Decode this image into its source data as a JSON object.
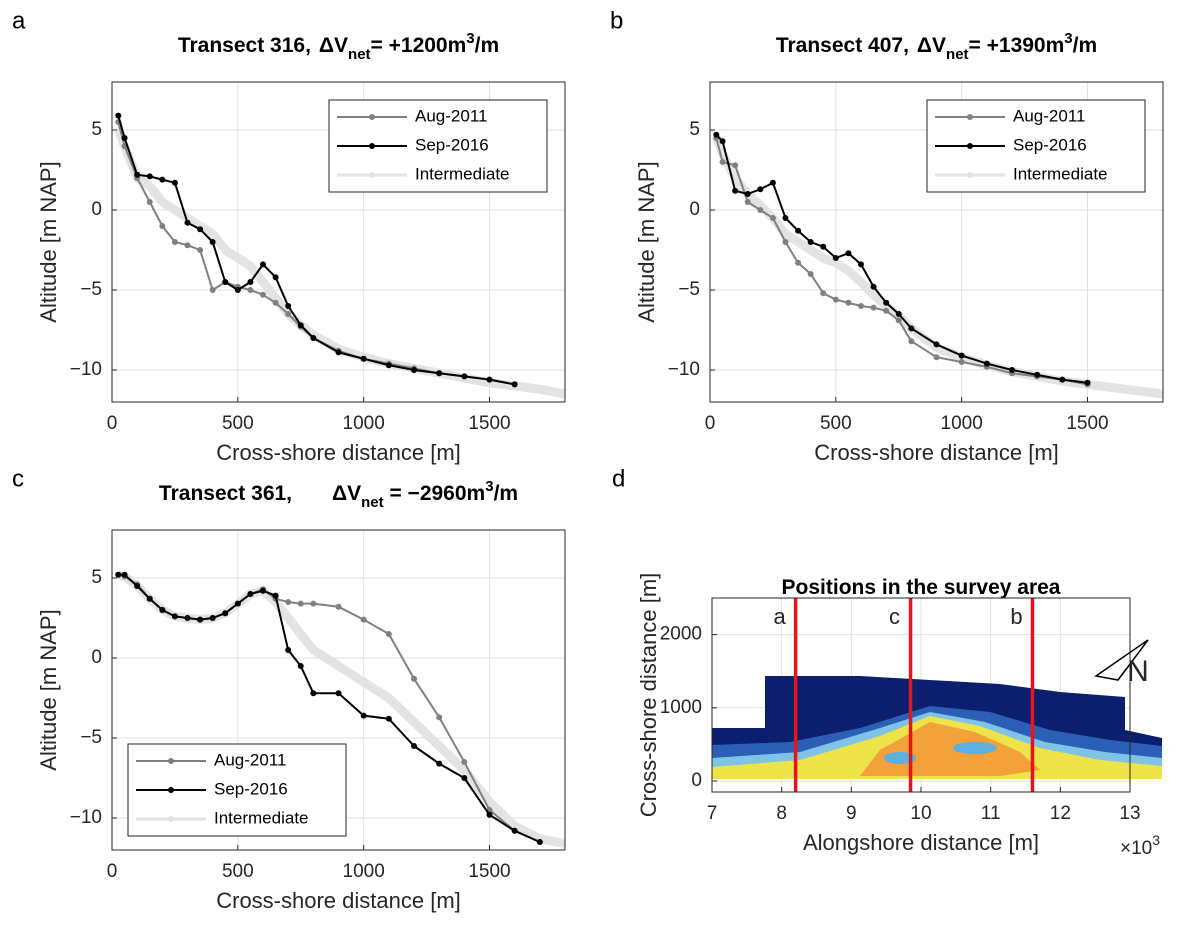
{
  "chart_data": [
    {
      "type": "line",
      "panel_label": "a",
      "title": "Transect 316,",
      "delta": {
        "symbol": "ΔV",
        "sub": "net",
        "text": "= +1200m",
        "sup": "3",
        "after": "/m"
      },
      "xlabel": "Cross-shore distance [m]",
      "ylabel": "Altitude [m NAP]",
      "xlim": [
        0,
        1800
      ],
      "ylim": [
        -12,
        8
      ],
      "xticks": [
        0,
        500,
        1000,
        1500
      ],
      "yticks": [
        {
          "value": -10,
          "label": "−10"
        },
        {
          "value": -5,
          "label": "−5"
        },
        0,
        5
      ],
      "grid": true,
      "legend": "upper right",
      "x": [
        25,
        50,
        100,
        150,
        200,
        250,
        300,
        350,
        400,
        450,
        500,
        550,
        600,
        650,
        700,
        750,
        800,
        900,
        1000,
        1100,
        1200,
        1300,
        1400,
        1500,
        1600,
        1700,
        1800
      ],
      "series": [
        {
          "name": "Intermediate",
          "color": "#e3e3e3",
          "values": [
            5,
            4,
            2,
            1.5,
            0.5,
            0,
            -0.5,
            -1,
            -1.5,
            -2.5,
            -3,
            -3.5,
            -4.5,
            -5.5,
            -6.5,
            -7.2,
            -7.8,
            -8.7,
            -9.2,
            -9.6,
            -9.9,
            -10.2,
            -10.5,
            -10.8,
            -11,
            -11.2,
            -11.5
          ]
        },
        {
          "name": "Aug-2011",
          "color": "#808080",
          "values": [
            5.5,
            4,
            2,
            0.5,
            -1,
            -2,
            -2.2,
            -2.5,
            -5,
            -4.5,
            -4.8,
            -5,
            -5.3,
            -5.8,
            -6.5,
            -7.3,
            -8,
            -8.8,
            -9.3,
            -9.6,
            -9.9,
            -10.2,
            -10.4,
            -10.6,
            -10.9,
            null,
            null
          ]
        },
        {
          "name": "Sep-2016",
          "color": "#000000",
          "values": [
            5.9,
            4.5,
            2.2,
            2.1,
            1.9,
            1.7,
            -0.8,
            -1.2,
            -2,
            -4.5,
            -5,
            -4.5,
            -3.4,
            -4.2,
            -6,
            -7.2,
            -8,
            -8.9,
            -9.3,
            -9.7,
            -10,
            -10.2,
            -10.4,
            -10.6,
            -10.9,
            null,
            null
          ]
        }
      ]
    },
    {
      "type": "line",
      "panel_label": "b",
      "title": "Transect 407,",
      "delta": {
        "symbol": "ΔV",
        "sub": "net",
        "text": "= +1390m",
        "sup": "3",
        "after": "/m"
      },
      "xlabel": "Cross-shore distance [m]",
      "ylabel": "Altitude [m NAP]",
      "xlim": [
        0,
        1800
      ],
      "ylim": [
        -12,
        8
      ],
      "xticks": [
        0,
        500,
        1000,
        1500
      ],
      "yticks": [
        {
          "value": -10,
          "label": "−10"
        },
        {
          "value": -5,
          "label": "−5"
        },
        0,
        5
      ],
      "grid": true,
      "legend": "upper right",
      "x": [
        25,
        50,
        100,
        150,
        200,
        250,
        300,
        350,
        400,
        450,
        500,
        550,
        600,
        650,
        700,
        750,
        800,
        900,
        1000,
        1100,
        1200,
        1300,
        1400,
        1500,
        1600,
        1700,
        1800
      ],
      "series": [
        {
          "name": "Intermediate",
          "color": "#e3e3e3",
          "values": [
            4.6,
            3.5,
            2,
            1,
            0.3,
            -0.5,
            -1.5,
            -2,
            -2.5,
            -3,
            -3.3,
            -3.8,
            -4.5,
            -5.3,
            -6,
            -6.6,
            -7.4,
            -8.6,
            -9.2,
            -9.7,
            -10.1,
            -10.4,
            -10.7,
            -10.9,
            -11.1,
            -11.3,
            -11.5
          ]
        },
        {
          "name": "Aug-2011",
          "color": "#808080",
          "values": [
            4.5,
            3,
            2.8,
            0.5,
            0,
            -0.5,
            -2,
            -3.3,
            -4,
            -5.2,
            -5.6,
            -5.8,
            -6,
            -6.1,
            -6.3,
            -6.9,
            -8.2,
            -9.2,
            -9.5,
            -9.8,
            -10.2,
            -10.4,
            -10.6,
            -10.9,
            null,
            null,
            null
          ]
        },
        {
          "name": "Sep-2016",
          "color": "#000000",
          "values": [
            4.7,
            4.3,
            1.2,
            1,
            1.3,
            1.7,
            -0.5,
            -1.3,
            -2,
            -2.3,
            -3,
            -2.7,
            -3.4,
            -4.8,
            -5.8,
            -6.5,
            -7.4,
            -8.4,
            -9.1,
            -9.6,
            -10,
            -10.3,
            -10.6,
            -10.8,
            null,
            null,
            null
          ]
        }
      ]
    },
    {
      "type": "line",
      "panel_label": "c",
      "title": "Transect 361,",
      "delta": {
        "symbol": "ΔV",
        "sub": "net",
        "text": " = −2960m",
        "sup": "3",
        "after": "/m"
      },
      "xlabel": "Cross-shore distance [m]",
      "ylabel": "Altitude [m NAP]",
      "xlim": [
        0,
        1800
      ],
      "ylim": [
        -12,
        8
      ],
      "xticks": [
        0,
        500,
        1000,
        1500
      ],
      "yticks": [
        {
          "value": -10,
          "label": "−10"
        },
        {
          "value": -5,
          "label": "−5"
        },
        0,
        5
      ],
      "grid": true,
      "legend": "lower left",
      "x": [
        25,
        50,
        100,
        150,
        200,
        250,
        300,
        350,
        400,
        450,
        500,
        550,
        600,
        650,
        700,
        750,
        800,
        900,
        1000,
        1100,
        1200,
        1300,
        1400,
        1500,
        1600,
        1700,
        1800
      ],
      "series": [
        {
          "name": "Intermediate",
          "color": "#e3e3e3",
          "values": [
            5.2,
            5.1,
            4.5,
            3.7,
            3,
            2.6,
            2.5,
            2.4,
            2.5,
            2.8,
            3.4,
            4,
            4.2,
            3.5,
            2.5,
            1.5,
            0.5,
            -0.5,
            -1.5,
            -2.5,
            -4,
            -5.5,
            -7,
            -9,
            -10.5,
            -11.3,
            -11.6
          ]
        },
        {
          "name": "Aug-2011",
          "color": "#808080",
          "values": [
            5.2,
            5.1,
            4.6,
            3.7,
            3,
            2.6,
            2.5,
            2.4,
            2.5,
            2.8,
            3.4,
            4,
            4.3,
            3.7,
            3.5,
            3.4,
            3.4,
            3.2,
            2.4,
            1.5,
            -1.3,
            -3.7,
            -6.5,
            -9.5,
            -10.8,
            -11.5,
            null
          ]
        },
        {
          "name": "Sep-2016",
          "color": "#000000",
          "values": [
            5.2,
            5.2,
            4.5,
            3.7,
            3,
            2.6,
            2.5,
            2.4,
            2.5,
            2.8,
            3.4,
            4,
            4.2,
            3.9,
            0.5,
            -0.5,
            -2.2,
            -2.2,
            -3.6,
            -3.8,
            -5.5,
            -6.6,
            -7.5,
            -9.8,
            -10.8,
            -11.5,
            null
          ]
        }
      ]
    },
    {
      "type": "map",
      "panel_label": "d",
      "title": "Positions in the survey area",
      "xlabel": "Alongshore distance [m]",
      "ylabel": "Cross-shore distance [m]",
      "x_multiplier": {
        "base": "×10",
        "exp": "3"
      },
      "xlim": [
        7,
        13
      ],
      "ylim": [
        -150,
        2500
      ],
      "xticks": [
        7,
        8,
        9,
        10,
        11,
        12,
        13
      ],
      "yticks": [
        0,
        1000,
        2000
      ],
      "grid": true,
      "north_label": "N",
      "transects": {
        "x": [
          8.2,
          9.85,
          11.6
        ],
        "labels": [
          "a",
          "c",
          "b"
        ],
        "color": "#e8141b"
      }
    }
  ]
}
